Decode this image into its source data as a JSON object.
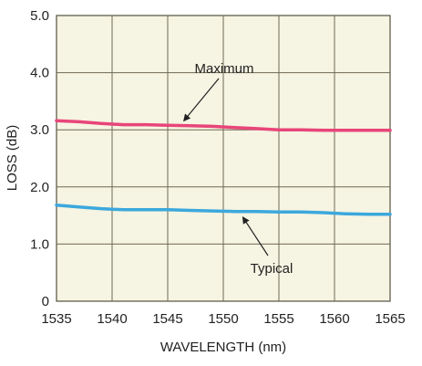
{
  "chart_data": {
    "type": "line",
    "xlabel": "WAVELENGTH (nm)",
    "ylabel": "LOSS (dB)",
    "xlim": [
      1535,
      1565
    ],
    "ylim": [
      0,
      5
    ],
    "x_ticks": [
      "1535",
      "1540",
      "1545",
      "1550",
      "1555",
      "1560",
      "1565"
    ],
    "y_ticks": [
      "0",
      "1.0",
      "2.0",
      "3.0",
      "4.0",
      "5.0"
    ],
    "grid": true,
    "background_color": "#f6f4e2",
    "series": [
      {
        "name": "Maximum",
        "color": "#e8457a",
        "x": [
          1535,
          1537,
          1539,
          1541,
          1543,
          1545,
          1547,
          1549,
          1551,
          1553,
          1555,
          1557,
          1559,
          1561,
          1563,
          1565
        ],
        "y": [
          3.16,
          3.14,
          3.11,
          3.09,
          3.09,
          3.08,
          3.07,
          3.06,
          3.04,
          3.02,
          3.0,
          3.0,
          2.99,
          2.99,
          2.99,
          2.99
        ]
      },
      {
        "name": "Typical",
        "color": "#3ba8dd",
        "x": [
          1535,
          1537,
          1539,
          1541,
          1543,
          1545,
          1547,
          1549,
          1551,
          1553,
          1555,
          1557,
          1559,
          1561,
          1563,
          1565
        ],
        "y": [
          1.68,
          1.65,
          1.62,
          1.6,
          1.6,
          1.6,
          1.59,
          1.58,
          1.57,
          1.57,
          1.56,
          1.56,
          1.55,
          1.53,
          1.52,
          1.52
        ]
      }
    ],
    "annotations": [
      {
        "text": "Maximum",
        "points_to_series": "Maximum",
        "at_x": 1546.5
      },
      {
        "text": "Typical",
        "points_to_series": "Typical",
        "at_x": 1551.8
      }
    ]
  }
}
